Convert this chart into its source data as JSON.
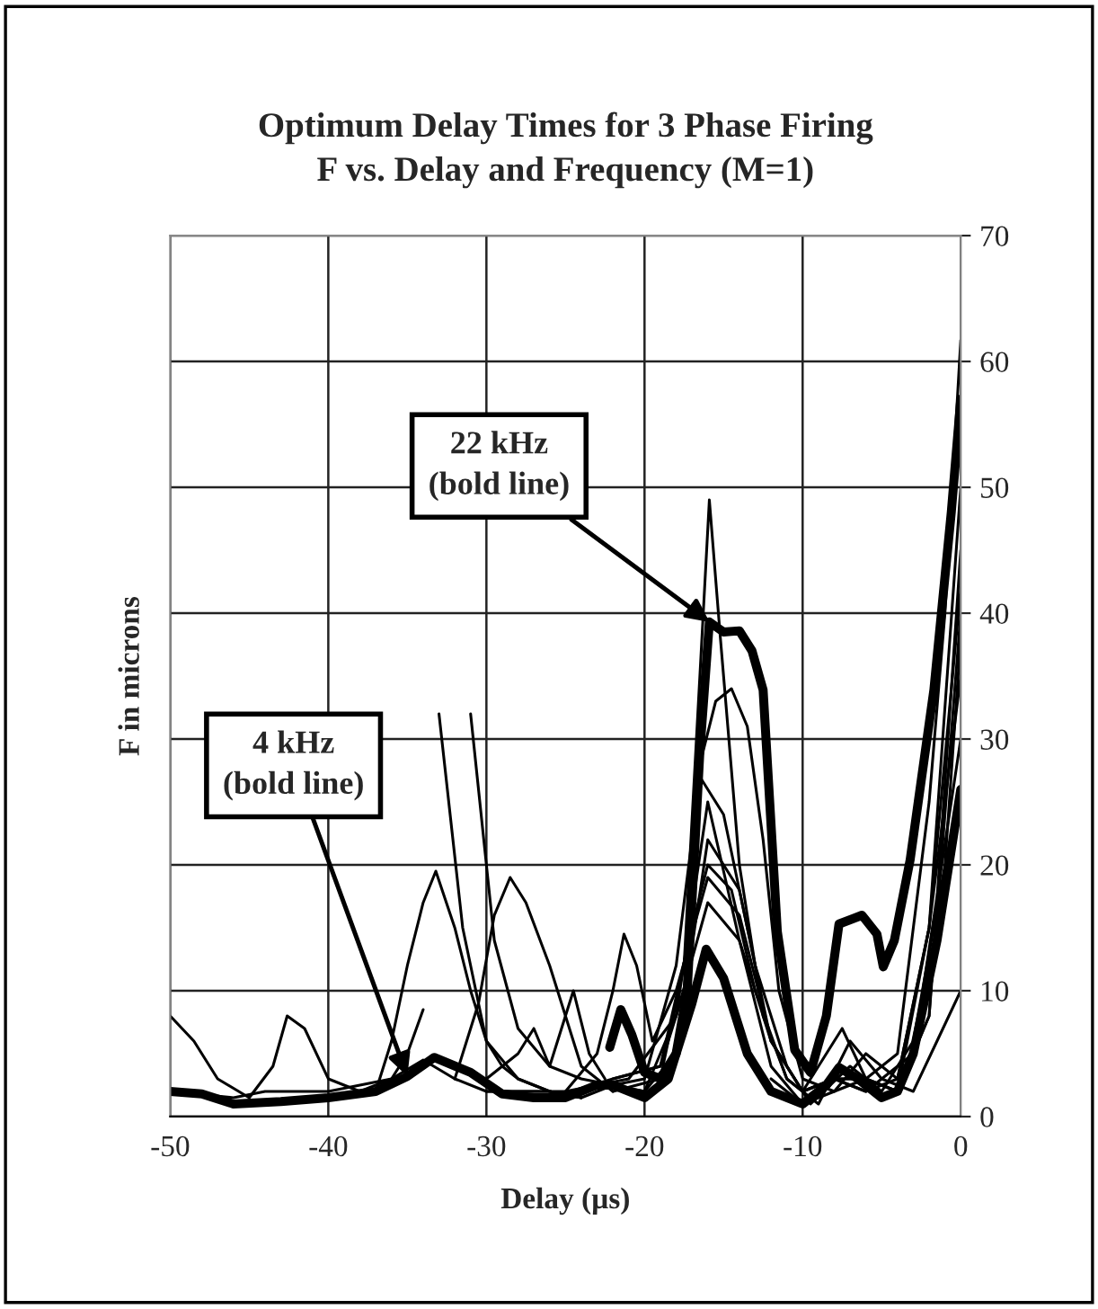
{
  "chart_data": {
    "type": "line",
    "title": "Optimum Delay Times for 3 Phase Firing\nF vs. Delay and Frequency (M=1)",
    "xlabel": "Delay (µs)",
    "ylabel": "F in microns",
    "xlim": [
      -50,
      0
    ],
    "xticks": [
      -50,
      -40,
      -30,
      -20,
      -10,
      0
    ],
    "ylim": [
      0,
      70
    ],
    "yticks": [
      0,
      10,
      20,
      30,
      40,
      50,
      60,
      70
    ],
    "grid": true,
    "legend": false,
    "marker": "none",
    "line_style": "solid",
    "annotations": [
      {
        "text": "22 kHz\n(bold line)",
        "x": -15.9,
        "y": 39.3
      },
      {
        "text": "4 kHz\n(bold line)",
        "x": -35,
        "y": 3.2
      }
    ],
    "series": [
      {
        "color": "#000000",
        "x": [
          -22,
          -19,
          -17.5,
          -16.5,
          -15.9,
          -15.2,
          -14,
          -12.5,
          -11,
          -10,
          -8,
          -6,
          -4,
          -2,
          0
        ],
        "values": [
          2,
          3,
          12,
          35,
          49,
          38,
          20,
          8,
          3,
          2,
          3,
          3,
          2,
          8,
          45
        ]
      },
      {
        "color": "#000000",
        "x": [
          -22,
          -19,
          -17.5,
          -16.5,
          -15.5,
          -14.5,
          -13.5,
          -12.5,
          -11.5,
          -10,
          -8,
          -6,
          -4,
          -2,
          0
        ],
        "values": [
          3,
          4,
          10,
          28,
          33,
          34,
          31,
          22,
          10,
          3,
          2,
          5,
          3,
          15,
          50
        ]
      },
      {
        "color": "#000000",
        "x": [
          -24,
          -20,
          -18,
          -16.5,
          -15,
          -13,
          -11,
          -9.5,
          -7,
          -5,
          -3,
          -1,
          0
        ],
        "values": [
          2,
          3,
          12,
          27,
          24,
          12,
          4,
          1,
          4,
          2,
          6,
          20,
          38
        ]
      },
      {
        "color": "#000000",
        "x": [
          -26,
          -22,
          -19,
          -17,
          -16,
          -14.5,
          -13,
          -11,
          -9,
          -7,
          -5,
          -3,
          -1.5,
          0
        ],
        "values": [
          1.5,
          3,
          4,
          15,
          20,
          18,
          10,
          3,
          1,
          6,
          3,
          2,
          6,
          10
        ]
      },
      {
        "color": "#000000",
        "x": [
          -30,
          -25,
          -21,
          -18,
          -16,
          -14,
          -12,
          -10,
          -7.5,
          -6,
          -4,
          -2,
          0
        ],
        "values": [
          2,
          2,
          3,
          8,
          17,
          14,
          6,
          2,
          7,
          3,
          2,
          15,
          35
        ]
      },
      {
        "color": "#000000",
        "x": [
          -33,
          -31.5,
          -30,
          -28,
          -26,
          -24,
          -22,
          -20,
          -18,
          -16,
          -14,
          -12,
          -10,
          -8,
          -6,
          -3,
          0
        ],
        "values": [
          32,
          15,
          6,
          3,
          2,
          1.5,
          2.5,
          2,
          5,
          22,
          18,
          6,
          2,
          3,
          2,
          5,
          30
        ]
      },
      {
        "color": "#000000",
        "x": [
          -31,
          -29.5,
          -28,
          -26,
          -24,
          -22,
          -20,
          -18,
          -16,
          -14,
          -12,
          -10,
          -8,
          -6,
          -4,
          -2,
          0
        ],
        "values": [
          32,
          14,
          7,
          4,
          3,
          2.5,
          2,
          8,
          25,
          14,
          4,
          1,
          2,
          3,
          2,
          8,
          40
        ]
      },
      {
        "color": "#000000",
        "x": [
          -37,
          -36,
          -35,
          -34,
          -33.2,
          -32,
          -31,
          -30,
          -29,
          -28,
          -26,
          -24
        ],
        "values": [
          2,
          6,
          12,
          17,
          19.5,
          15,
          10,
          6,
          4,
          3,
          2,
          1.5
        ]
      },
      {
        "color": "#000000",
        "x": [
          -32,
          -30.5,
          -29.5,
          -28.5,
          -27.5,
          -26,
          -25,
          -24,
          -22
        ],
        "values": [
          3,
          9,
          16,
          19,
          17,
          12,
          8,
          4,
          2
        ]
      },
      {
        "color": "#000000",
        "x": [
          -50,
          -48.5,
          -47,
          -45,
          -43.5,
          -42.6,
          -41.5,
          -40,
          -38,
          -36,
          -35,
          -34
        ],
        "values": [
          8,
          6,
          3,
          1.5,
          4,
          8,
          7,
          3,
          2,
          3,
          5,
          8.5
        ]
      },
      {
        "color": "#000000",
        "x": [
          -12,
          -10,
          -8,
          -6,
          -4,
          -2,
          -1,
          0
        ],
        "values": [
          3,
          1,
          3,
          3,
          5,
          25,
          40,
          61.7
        ]
      },
      {
        "color": "#000000",
        "x": [
          -25,
          -23,
          -22,
          -21.3,
          -20.5,
          -19.5,
          -18,
          -16,
          -14,
          -12,
          -10,
          -8,
          -6,
          -4,
          -2,
          0
        ],
        "values": [
          2,
          5,
          10,
          14.5,
          12,
          6,
          10,
          19,
          16,
          6,
          2,
          3,
          2,
          3,
          15,
          42
        ]
      },
      {
        "color": "#000000",
        "x": [
          -50,
          -46,
          -44,
          -42,
          -40,
          -38,
          -36,
          -34,
          -32,
          -30,
          -28,
          -26,
          -24
        ],
        "values": [
          2,
          1.5,
          2,
          2,
          2,
          2.5,
          3,
          4.5,
          3,
          2,
          2,
          2,
          1.5
        ]
      },
      {
        "color": "#000000",
        "x": [
          -30,
          -28,
          -27,
          -26,
          -25,
          -24.5,
          -23.5,
          -22.5
        ],
        "values": [
          3,
          5,
          7,
          4,
          8,
          10,
          5,
          3
        ]
      },
      {
        "color": "#000000",
        "x": [
          -22.2,
          -21.5,
          -20.8,
          -20,
          -19,
          -18,
          -17.3,
          -16.5,
          -15.9,
          -15,
          -14,
          -13.2,
          -12.5,
          -11.6,
          -10.5,
          -9.5,
          -8.5,
          -7.7,
          -6.25,
          -5.3,
          -4.9,
          -4.2,
          -3.2,
          -1.7,
          -0.6,
          0
        ],
        "values": [
          5.5,
          8.5,
          6.5,
          3.5,
          3,
          5,
          10,
          29,
          39.3,
          38.5,
          38.6,
          37,
          33.9,
          14.7,
          5.3,
          3.5,
          8,
          15.3,
          16,
          14.5,
          11.9,
          14,
          20.4,
          33.9,
          48,
          57
        ]
      },
      {
        "color": "#000000",
        "x": [
          -50,
          -48,
          -46,
          -43,
          -40,
          -37,
          -35,
          -33.3,
          -31,
          -29,
          -27,
          -25,
          -23,
          -22,
          -20,
          -18.5,
          -17,
          -16.1,
          -15,
          -13.5,
          -12,
          -10,
          -8.5,
          -7.7,
          -6.5,
          -5,
          -4,
          -3,
          -1.5,
          0
        ],
        "values": [
          2,
          1.8,
          1,
          1.2,
          1.5,
          2,
          3.2,
          4.7,
          3.5,
          1.8,
          1.5,
          1.5,
          2.5,
          2.5,
          1.5,
          3,
          9,
          13.3,
          11,
          5,
          2,
          1,
          2.5,
          3.9,
          3,
          1.5,
          2,
          5,
          14,
          26
        ]
      }
    ]
  }
}
